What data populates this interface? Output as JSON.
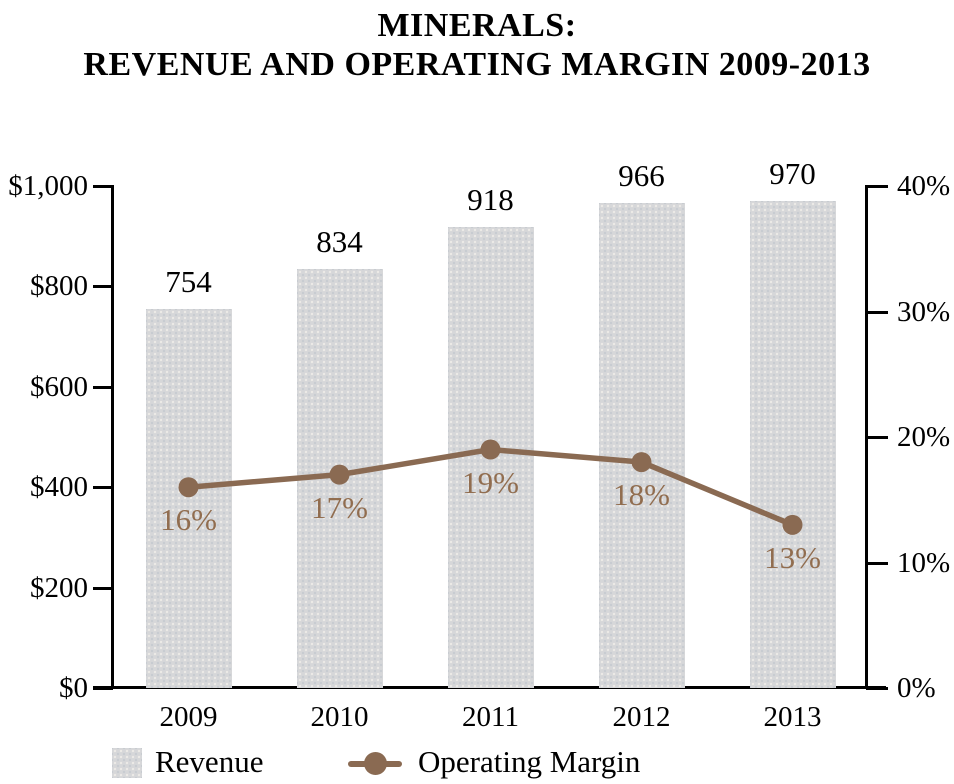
{
  "title": {
    "line1": "MINERALS:",
    "line2": "REVENUE AND OPERATING MARGIN 2009-2013"
  },
  "colors": {
    "bar_fill": "#d6d7d9",
    "line": "#8a6a52",
    "line_label": "#916d4f",
    "axis": "#000000",
    "text": "#000000"
  },
  "chart_data": {
    "type": "bar+line",
    "title": "MINERALS: REVENUE AND OPERATING MARGIN 2009-2013",
    "categories": [
      "2009",
      "2010",
      "2011",
      "2012",
      "2013"
    ],
    "series": [
      {
        "name": "Revenue",
        "type": "bar",
        "axis": "left",
        "values": [
          754,
          834,
          918,
          966,
          970
        ],
        "value_labels": [
          "754",
          "834",
          "918",
          "966",
          "970"
        ]
      },
      {
        "name": "Operating Margin",
        "type": "line",
        "axis": "right",
        "values": [
          16,
          17,
          19,
          18,
          13
        ],
        "value_labels": [
          "16%",
          "17%",
          "19%",
          "18%",
          "13%"
        ]
      }
    ],
    "left_axis": {
      "min": 0,
      "max": 1000,
      "ticks": [
        {
          "value": 0,
          "label": "$0"
        },
        {
          "value": 200,
          "label": "$200"
        },
        {
          "value": 400,
          "label": "$400"
        },
        {
          "value": 600,
          "label": "$600"
        },
        {
          "value": 800,
          "label": "$800"
        },
        {
          "value": 1000,
          "label": "$1,000"
        }
      ]
    },
    "right_axis": {
      "min": 0,
      "max": 40,
      "ticks": [
        {
          "value": 0,
          "label": "0%"
        },
        {
          "value": 10,
          "label": "10%"
        },
        {
          "value": 20,
          "label": "20%"
        },
        {
          "value": 30,
          "label": "30%"
        },
        {
          "value": 40,
          "label": "40%"
        }
      ]
    },
    "legend": [
      {
        "label": "Revenue",
        "marker": "gray-square"
      },
      {
        "label": "Operating Margin",
        "marker": "brown-line-dot"
      }
    ],
    "grid": false,
    "legend_position": "bottom-left"
  }
}
